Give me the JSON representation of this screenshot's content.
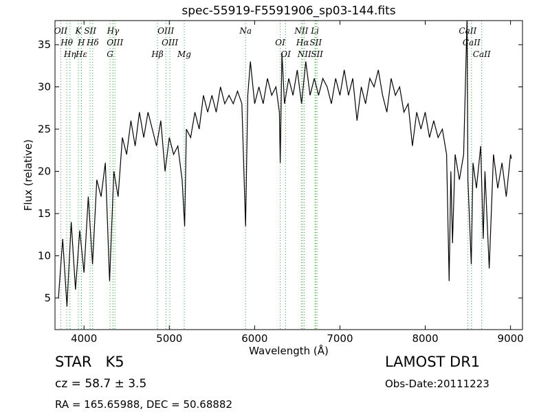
{
  "chart_data": {
    "type": "line",
    "title": "spec-55919-F5591906_sp03-144.fits",
    "x_label": "Wavelength (Å)",
    "y_label": "Flux (relative)",
    "xlim": [
      3660,
      9140
    ],
    "ylim": [
      1.26,
      37.85
    ],
    "xticks": [
      4000,
      5000,
      6000,
      7000,
      8000,
      9000
    ],
    "yticks": [
      5,
      10,
      15,
      20,
      25,
      30,
      35
    ],
    "series": [
      {
        "name": "spectrum",
        "color": "#000000",
        "x": [
          3700,
          3750,
          3800,
          3850,
          3900,
          3950,
          4000,
          4050,
          4100,
          4150,
          4200,
          4250,
          4300,
          4350,
          4400,
          4450,
          4500,
          4550,
          4600,
          4650,
          4700,
          4750,
          4800,
          4850,
          4900,
          4950,
          5000,
          5050,
          5100,
          5150,
          5180,
          5200,
          5250,
          5300,
          5350,
          5400,
          5450,
          5500,
          5550,
          5600,
          5650,
          5700,
          5750,
          5800,
          5850,
          5894,
          5920,
          5950,
          6000,
          6050,
          6100,
          6150,
          6200,
          6250,
          6290,
          6300,
          6320,
          6350,
          6400,
          6450,
          6500,
          6550,
          6600,
          6650,
          6700,
          6750,
          6800,
          6850,
          6900,
          6950,
          7000,
          7050,
          7100,
          7150,
          7200,
          7250,
          7300,
          7350,
          7400,
          7450,
          7500,
          7550,
          7600,
          7650,
          7700,
          7750,
          7800,
          7850,
          7900,
          7950,
          8000,
          8050,
          8100,
          8150,
          8200,
          8250,
          8280,
          8300,
          8320,
          8350,
          8400,
          8450,
          8490,
          8500,
          8540,
          8560,
          8600,
          8650,
          8680,
          8700,
          8750,
          8800,
          8850,
          8900,
          8950,
          9000,
          9010
        ],
        "values": [
          5,
          12,
          4,
          14,
          6,
          13,
          8,
          17,
          9,
          19,
          17,
          21,
          7,
          20,
          17,
          24,
          22,
          26,
          23,
          27,
          24,
          27,
          25,
          23,
          26,
          20,
          24,
          22,
          23,
          19,
          13.5,
          25,
          24,
          27,
          25,
          29,
          27,
          29,
          27,
          30,
          28,
          29,
          28,
          29.5,
          28,
          13.5,
          29,
          33,
          28,
          30,
          28,
          31,
          29,
          30,
          27,
          21,
          34,
          28,
          31,
          29,
          32,
          28,
          33,
          29,
          31,
          29,
          31,
          30,
          28,
          31,
          29,
          32,
          29,
          31,
          26,
          30,
          28,
          31,
          30,
          32,
          29,
          27,
          31,
          29,
          30,
          27,
          28,
          23,
          27,
          25,
          27,
          24,
          26,
          24,
          25,
          22,
          7,
          20,
          11.5,
          22,
          19,
          22,
          38,
          19,
          9,
          21,
          18,
          23,
          12,
          20,
          8.5,
          22,
          18,
          21,
          17,
          22,
          21.5
        ]
      }
    ],
    "lines": {
      "color": "#2ca02c",
      "labels": [
        "OII",
        "Hθ",
        "Hη",
        "K",
        "H",
        "Hε",
        "SII",
        "Hδ",
        "G",
        "Hγ",
        "OIII",
        "Hβ",
        "OIII",
        "OIII",
        "Mg",
        "Na",
        "OI",
        "OI",
        "NII",
        "Hα",
        "NII",
        "Li",
        "SII",
        "SII",
        "CaII",
        "CaII",
        "CaII"
      ],
      "wavelengths": [
        3727,
        3798,
        3835,
        3934,
        3969,
        3970,
        4072,
        4102,
        4305,
        4341,
        4363,
        4861,
        4959,
        5007,
        5175,
        5894,
        6300,
        6364,
        6548,
        6563,
        6583,
        6707,
        6716,
        6731,
        8498,
        8542,
        8662
      ]
    },
    "object_class": "STAR   K5",
    "redshift": "cz = 58.7 ± 3.5",
    "coordinates": "RA = 165.65988, DEC = 50.68882",
    "survey": "LAMOST DR1",
    "obs_date": "Obs-Date:20111223"
  }
}
